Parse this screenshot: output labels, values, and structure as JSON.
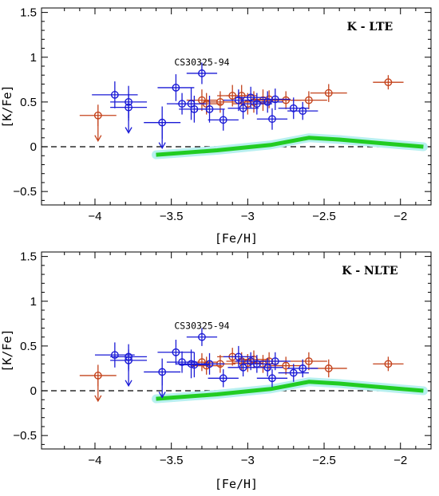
{
  "chart_data": [
    {
      "type": "scatter",
      "panel_label": "K - LTE",
      "xlabel": "[Fe/H]",
      "ylabel": "[K/Fe]",
      "xlim": [
        -4.35,
        -1.8
      ],
      "ylim": [
        -0.65,
        1.55
      ],
      "xticks": [
        -4,
        -3.5,
        -3,
        -2.5,
        -2
      ],
      "xtick_labels": [
        "−4",
        "−3.5",
        "−3",
        "−2.5",
        "−2"
      ],
      "yticks": [
        -0.5,
        0,
        0.5,
        1,
        1.5
      ],
      "ytick_labels": [
        "−0.5",
        "0",
        "0.5",
        "1",
        "1.5"
      ],
      "grid": false,
      "annotation": {
        "text": "CS30325-94",
        "x": -3.3,
        "y": 0.82
      },
      "colors": {
        "blue_series": "#1a1ad6",
        "red_series": "#c4431c",
        "model_line": "#22cc22",
        "model_band": "#b8f0f0"
      },
      "reference_line_y": 0,
      "model_curve": {
        "x": [
          -3.6,
          -3.2,
          -2.85,
          -2.6,
          -2.4,
          -2.2,
          -1.85
        ],
        "y": [
          -0.09,
          -0.04,
          0.02,
          0.1,
          0.08,
          0.05,
          0.0
        ]
      },
      "series": [
        {
          "color": "blue",
          "points": [
            {
              "x": -3.87,
              "y": 0.58,
              "xerr": 0.15,
              "yerr": 0.15
            },
            {
              "x": -3.78,
              "y": 0.5,
              "xerr": 0.12,
              "yerr": 0.18
            },
            {
              "x": -3.78,
              "y": 0.44,
              "xerr": 0.12,
              "yerr": 0.15,
              "upper": true
            },
            {
              "x": -3.56,
              "y": 0.27,
              "xerr": 0.12,
              "yerr": 0.18,
              "upper": true
            },
            {
              "x": -3.47,
              "y": 0.66,
              "xerr": 0.12,
              "yerr": 0.15
            },
            {
              "x": -3.43,
              "y": 0.48,
              "xerr": 0.1,
              "yerr": 0.12
            },
            {
              "x": -3.37,
              "y": 0.48,
              "xerr": 0.1,
              "yerr": 0.18
            },
            {
              "x": -3.35,
              "y": 0.42,
              "xerr": 0.1,
              "yerr": 0.15
            },
            {
              "x": -3.3,
              "y": 0.82,
              "xerr": 0.1,
              "yerr": 0.12
            },
            {
              "x": -3.25,
              "y": 0.42,
              "xerr": 0.1,
              "yerr": 0.15
            },
            {
              "x": -3.16,
              "y": 0.3,
              "xerr": 0.1,
              "yerr": 0.12
            },
            {
              "x": -3.06,
              "y": 0.52,
              "xerr": 0.1,
              "yerr": 0.12
            },
            {
              "x": -3.03,
              "y": 0.43,
              "xerr": 0.1,
              "yerr": 0.12
            },
            {
              "x": -2.98,
              "y": 0.55,
              "xerr": 0.1,
              "yerr": 0.12
            },
            {
              "x": -2.94,
              "y": 0.48,
              "xerr": 0.1,
              "yerr": 0.12
            },
            {
              "x": -2.87,
              "y": 0.5,
              "xerr": 0.1,
              "yerr": 0.12
            },
            {
              "x": -2.84,
              "y": 0.31,
              "xerr": 0.1,
              "yerr": 0.12
            },
            {
              "x": -2.82,
              "y": 0.53,
              "xerr": 0.1,
              "yerr": 0.12
            },
            {
              "x": -2.7,
              "y": 0.43,
              "xerr": 0.1,
              "yerr": 0.12
            },
            {
              "x": -2.64,
              "y": 0.4,
              "xerr": 0.1,
              "yerr": 0.1
            }
          ]
        },
        {
          "color": "red",
          "points": [
            {
              "x": -3.98,
              "y": 0.35,
              "xerr": 0.12,
              "yerr": 0.12,
              "upper": true
            },
            {
              "x": -3.3,
              "y": 0.52,
              "xerr": 0.1,
              "yerr": 0.12
            },
            {
              "x": -3.27,
              "y": 0.48,
              "xerr": 0.1,
              "yerr": 0.12
            },
            {
              "x": -3.18,
              "y": 0.5,
              "xerr": 0.1,
              "yerr": 0.12
            },
            {
              "x": -3.1,
              "y": 0.57,
              "xerr": 0.1,
              "yerr": 0.12
            },
            {
              "x": -3.04,
              "y": 0.57,
              "xerr": 0.1,
              "yerr": 0.12
            },
            {
              "x": -3.0,
              "y": 0.48,
              "xerr": 0.1,
              "yerr": 0.12
            },
            {
              "x": -2.96,
              "y": 0.5,
              "xerr": 0.1,
              "yerr": 0.12
            },
            {
              "x": -2.9,
              "y": 0.52,
              "xerr": 0.1,
              "yerr": 0.12
            },
            {
              "x": -2.86,
              "y": 0.53,
              "xerr": 0.1,
              "yerr": 0.1
            },
            {
              "x": -2.75,
              "y": 0.52,
              "xerr": 0.1,
              "yerr": 0.1
            },
            {
              "x": -2.6,
              "y": 0.52,
              "xerr": 0.12,
              "yerr": 0.1
            },
            {
              "x": -2.47,
              "y": 0.6,
              "xerr": 0.12,
              "yerr": 0.1
            },
            {
              "x": -2.08,
              "y": 0.72,
              "xerr": 0.1,
              "yerr": 0.08
            }
          ]
        }
      ]
    },
    {
      "type": "scatter",
      "panel_label": "K - NLTE",
      "xlabel": "[Fe/H]",
      "ylabel": "[K/Fe]",
      "xlim": [
        -4.35,
        -1.8
      ],
      "ylim": [
        -0.65,
        1.55
      ],
      "xticks": [
        -4,
        -3.5,
        -3,
        -2.5,
        -2
      ],
      "xtick_labels": [
        "−4",
        "−3.5",
        "−3",
        "−2.5",
        "−2"
      ],
      "yticks": [
        -0.5,
        0,
        0.5,
        1,
        1.5
      ],
      "ytick_labels": [
        "−0.5",
        "0",
        "0.5",
        "1",
        "1.5"
      ],
      "grid": false,
      "annotation": {
        "text": "CS30325-94",
        "x": -3.3,
        "y": 0.6
      },
      "colors": {
        "blue_series": "#1a1ad6",
        "red_series": "#c4431c",
        "model_line": "#22cc22",
        "model_band": "#b8f0f0"
      },
      "reference_line_y": 0,
      "model_curve": {
        "x": [
          -3.6,
          -3.2,
          -2.85,
          -2.6,
          -2.4,
          -2.2,
          -1.85
        ],
        "y": [
          -0.09,
          -0.04,
          0.02,
          0.1,
          0.08,
          0.05,
          0.0
        ]
      },
      "series": [
        {
          "color": "blue",
          "points": [
            {
              "x": -3.87,
              "y": 0.4,
              "xerr": 0.13,
              "yerr": 0.14
            },
            {
              "x": -3.78,
              "y": 0.38,
              "xerr": 0.12,
              "yerr": 0.14
            },
            {
              "x": -3.78,
              "y": 0.34,
              "xerr": 0.12,
              "yerr": 0.12,
              "upper": true
            },
            {
              "x": -3.56,
              "y": 0.21,
              "xerr": 0.12,
              "yerr": 0.15,
              "upper": true
            },
            {
              "x": -3.47,
              "y": 0.43,
              "xerr": 0.12,
              "yerr": 0.14
            },
            {
              "x": -3.43,
              "y": 0.32,
              "xerr": 0.1,
              "yerr": 0.12
            },
            {
              "x": -3.37,
              "y": 0.3,
              "xerr": 0.1,
              "yerr": 0.16
            },
            {
              "x": -3.35,
              "y": 0.29,
              "xerr": 0.1,
              "yerr": 0.14
            },
            {
              "x": -3.3,
              "y": 0.6,
              "xerr": 0.1,
              "yerr": 0.1
            },
            {
              "x": -3.25,
              "y": 0.3,
              "xerr": 0.1,
              "yerr": 0.12
            },
            {
              "x": -3.16,
              "y": 0.14,
              "xerr": 0.1,
              "yerr": 0.1
            },
            {
              "x": -3.06,
              "y": 0.38,
              "xerr": 0.1,
              "yerr": 0.12
            },
            {
              "x": -3.03,
              "y": 0.26,
              "xerr": 0.1,
              "yerr": 0.1
            },
            {
              "x": -2.98,
              "y": 0.33,
              "xerr": 0.1,
              "yerr": 0.1
            },
            {
              "x": -2.94,
              "y": 0.3,
              "xerr": 0.1,
              "yerr": 0.1
            },
            {
              "x": -2.87,
              "y": 0.26,
              "xerr": 0.1,
              "yerr": 0.1
            },
            {
              "x": -2.84,
              "y": 0.14,
              "xerr": 0.1,
              "yerr": 0.1
            },
            {
              "x": -2.82,
              "y": 0.33,
              "xerr": 0.1,
              "yerr": 0.1
            },
            {
              "x": -2.7,
              "y": 0.2,
              "xerr": 0.1,
              "yerr": 0.1
            },
            {
              "x": -2.64,
              "y": 0.25,
              "xerr": 0.1,
              "yerr": 0.1
            }
          ]
        },
        {
          "color": "red",
          "points": [
            {
              "x": -3.98,
              "y": 0.17,
              "xerr": 0.12,
              "yerr": 0.12,
              "upper": true
            },
            {
              "x": -3.3,
              "y": 0.32,
              "xerr": 0.1,
              "yerr": 0.1
            },
            {
              "x": -3.27,
              "y": 0.28,
              "xerr": 0.1,
              "yerr": 0.1
            },
            {
              "x": -3.18,
              "y": 0.3,
              "xerr": 0.1,
              "yerr": 0.1
            },
            {
              "x": -3.1,
              "y": 0.38,
              "xerr": 0.1,
              "yerr": 0.1
            },
            {
              "x": -3.04,
              "y": 0.33,
              "xerr": 0.1,
              "yerr": 0.1
            },
            {
              "x": -3.0,
              "y": 0.31,
              "xerr": 0.1,
              "yerr": 0.1
            },
            {
              "x": -2.96,
              "y": 0.35,
              "xerr": 0.1,
              "yerr": 0.1
            },
            {
              "x": -2.9,
              "y": 0.3,
              "xerr": 0.1,
              "yerr": 0.1
            },
            {
              "x": -2.86,
              "y": 0.33,
              "xerr": 0.1,
              "yerr": 0.1
            },
            {
              "x": -2.75,
              "y": 0.28,
              "xerr": 0.1,
              "yerr": 0.1
            },
            {
              "x": -2.6,
              "y": 0.33,
              "xerr": 0.12,
              "yerr": 0.1
            },
            {
              "x": -2.47,
              "y": 0.25,
              "xerr": 0.12,
              "yerr": 0.1
            },
            {
              "x": -2.08,
              "y": 0.3,
              "xerr": 0.1,
              "yerr": 0.08
            }
          ]
        }
      ]
    }
  ]
}
